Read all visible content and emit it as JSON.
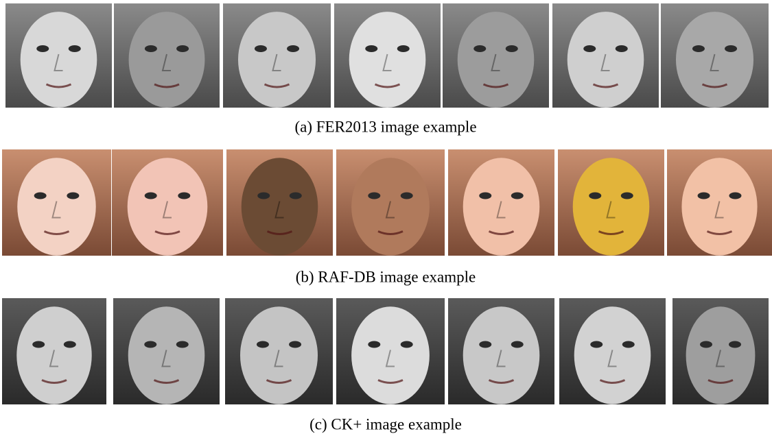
{
  "figure": {
    "panels": [
      {
        "caption": "(a) FER2013 image example"
      },
      {
        "caption": "(b) RAF-DB image example"
      },
      {
        "caption": "(c) CK+ image example"
      }
    ]
  }
}
